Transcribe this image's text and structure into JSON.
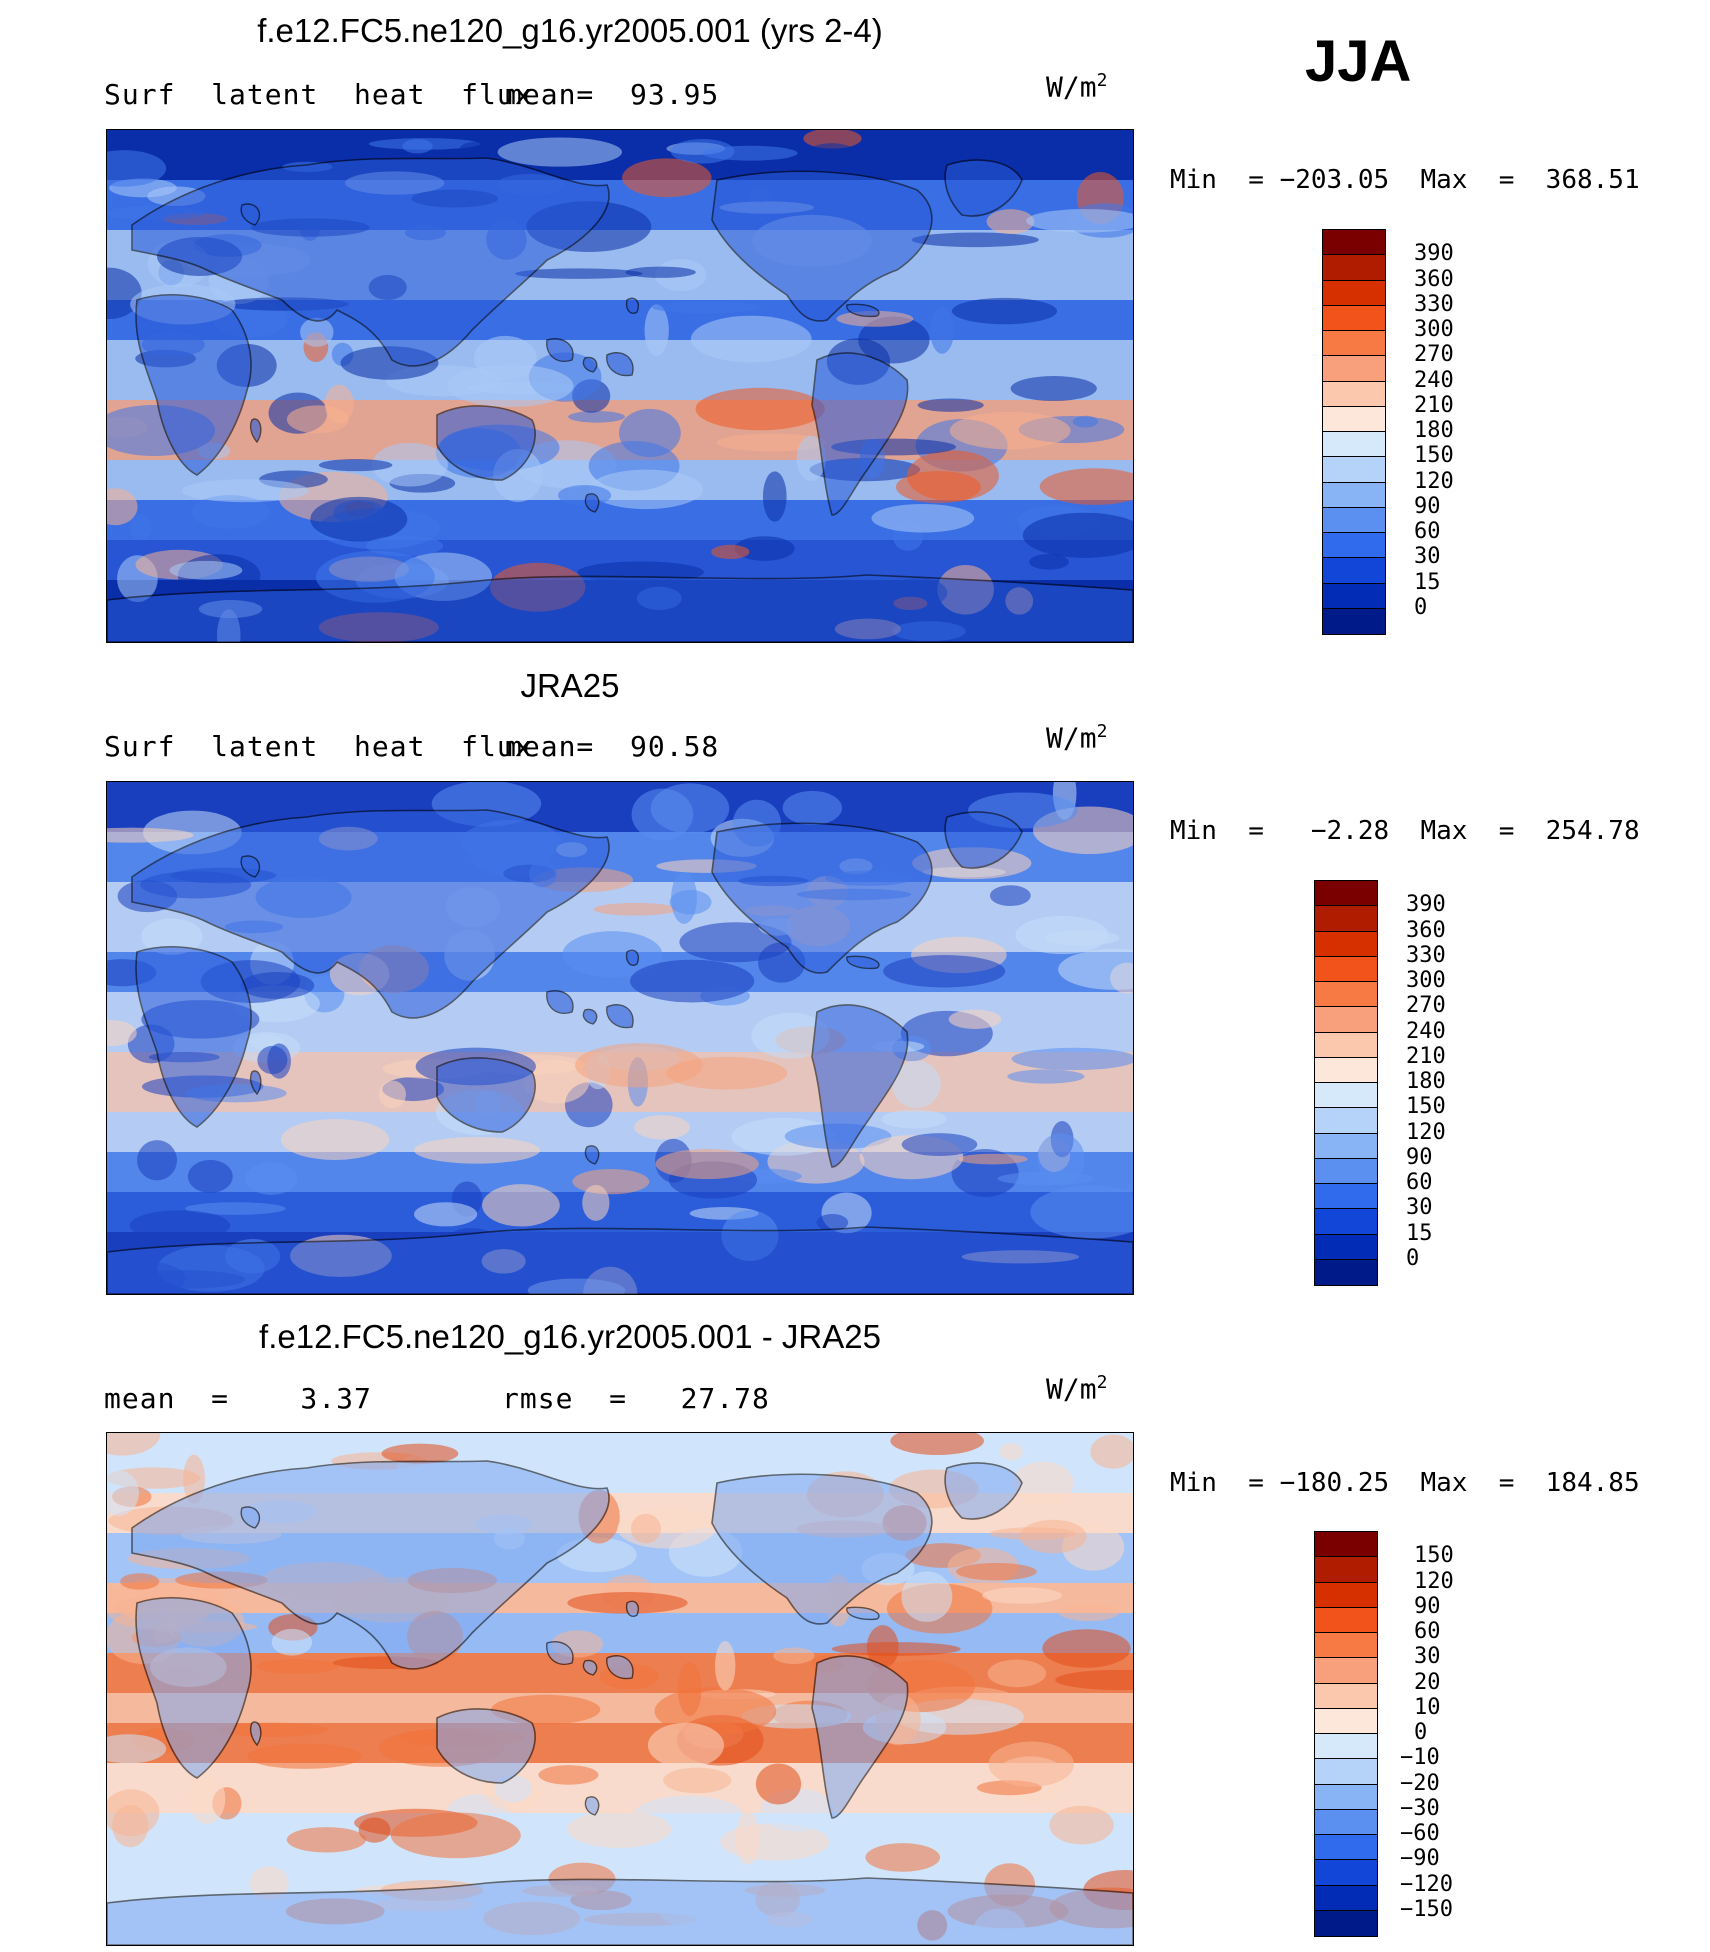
{
  "season": "JJA",
  "units_base": "W/m",
  "units_sup": "2",
  "panels": [
    {
      "title": "f.e12.FC5.ne120_g16.yr2005.001 (yrs 2-4)",
      "left_label": "Surf  latent  heat  flux",
      "stat_label": "mean=  93.95",
      "minmax": "Min  = −203.05  Max  =  368.51",
      "colorbar": {
        "labels": [
          "390",
          "360",
          "330",
          "300",
          "270",
          "240",
          "210",
          "180",
          "150",
          "120",
          "90",
          "60",
          "30",
          "15",
          "0"
        ],
        "colors": [
          "#7a0000",
          "#b01c00",
          "#d63000",
          "#f2531a",
          "#f77a45",
          "#f8a07b",
          "#fbc8ad",
          "#fde7da",
          "#d6e9fb",
          "#b5d3f8",
          "#88b3f4",
          "#5b8ff0",
          "#2f6bec",
          "#1146d8",
          "#022cb5",
          "#001a8a"
        ]
      },
      "map_palette": {
        "ocean_low": "#0a2fa8",
        "ocean_mid": "#3f76ea",
        "ocean_high": "#a9cbf7",
        "warm": "#f8b08f",
        "hot": "#ef5a22",
        "land": "#2a5ad8"
      }
    },
    {
      "title": "JRA25",
      "left_label": "Surf  latent  heat  flux",
      "stat_label": "mean=  90.58",
      "minmax": "Min  =   −2.28  Max  =  254.78",
      "colorbar": {
        "labels": [
          "390",
          "360",
          "330",
          "300",
          "270",
          "240",
          "210",
          "180",
          "150",
          "120",
          "90",
          "60",
          "30",
          "15",
          "0"
        ],
        "colors": [
          "#7a0000",
          "#b01c00",
          "#d63000",
          "#f2531a",
          "#f77a45",
          "#f8a07b",
          "#fbc8ad",
          "#fde7da",
          "#d6e9fb",
          "#b5d3f8",
          "#88b3f4",
          "#5b8ff0",
          "#2f6bec",
          "#1146d8",
          "#022cb5",
          "#001a8a"
        ]
      },
      "map_palette": {
        "ocean_low": "#1a3fbf",
        "ocean_mid": "#5a8ef0",
        "ocean_high": "#c5dcf8",
        "warm": "#fbd3bd",
        "hot": "#f6a27c",
        "land": "#2d5fdd"
      }
    },
    {
      "title": "f.e12.FC5.ne120_g16.yr2005.001 - JRA25",
      "left_label": "mean  =    3.37",
      "stat_label": "rmse  =   27.78",
      "minmax": "Min  = −180.25  Max  =  184.85",
      "colorbar": {
        "labels": [
          "150",
          "120",
          "90",
          "60",
          "30",
          "20",
          "10",
          "0",
          "−10",
          "−20",
          "−30",
          "−60",
          "−90",
          "−120",
          "−150"
        ],
        "colors": [
          "#7a0000",
          "#b01c00",
          "#d63000",
          "#f2531a",
          "#f77a45",
          "#f8a07b",
          "#fbc8ad",
          "#fde7da",
          "#d6e9fb",
          "#b5d3f8",
          "#88b3f4",
          "#5b8ff0",
          "#2f6bec",
          "#1146d8",
          "#022cb5",
          "#001a8a"
        ]
      },
      "map_palette": {
        "ocean_low": "#cfe4fb",
        "ocean_mid": "#f8b594",
        "ocean_high": "#f0723c",
        "warm": "#fcd9c7",
        "hot": "#e14c1a",
        "land": "#7fa9f2"
      }
    }
  ]
}
